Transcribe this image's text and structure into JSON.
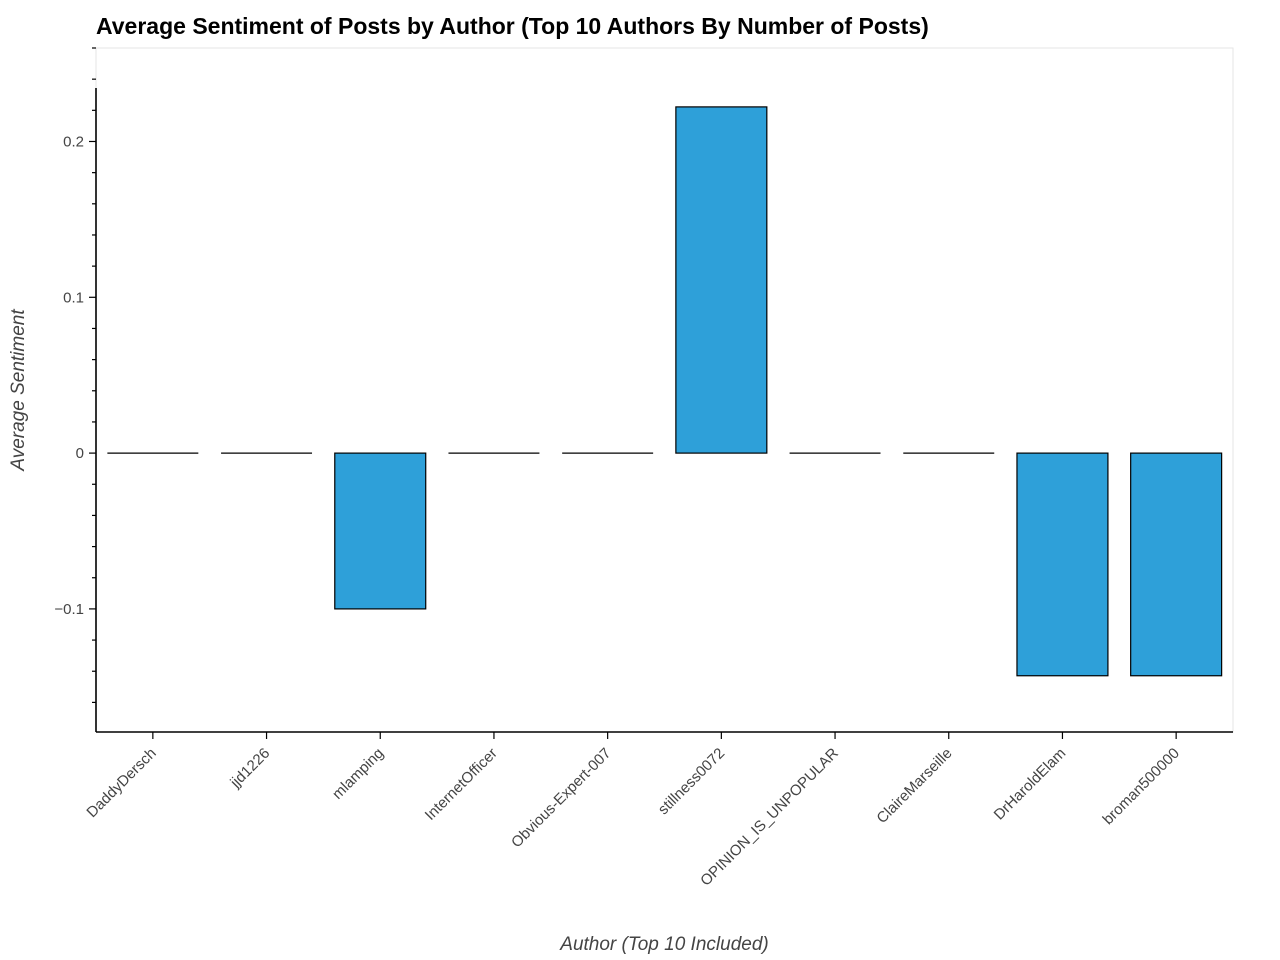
{
  "chart_data": {
    "type": "bar",
    "title": "Average Sentiment of Posts by Author (Top 10 Authors By Number of Posts)",
    "xlabel": "Author (Top 10 Included)",
    "ylabel": "Average Sentiment",
    "categories": [
      "DaddyDersch",
      "jjd1226",
      "mlamping",
      "InternetOfficer",
      "Obvious-Expert-007",
      "stillness0072",
      "OPINION_IS_UNPOPULAR",
      "ClaireMarseille",
      "DrHaroldElam",
      "broman500000"
    ],
    "values": [
      0,
      0,
      -0.1,
      0,
      0,
      0.2222,
      0,
      0,
      -0.1429,
      -0.1429
    ],
    "ylim": [
      -0.179,
      0.26
    ],
    "yticks": [
      -0.1,
      0,
      0.1,
      0.2
    ],
    "ytick_labels": [
      "−0.1",
      "0",
      "0.1",
      "0.2"
    ],
    "bar_color": "#2ea0d9",
    "grid": false
  }
}
